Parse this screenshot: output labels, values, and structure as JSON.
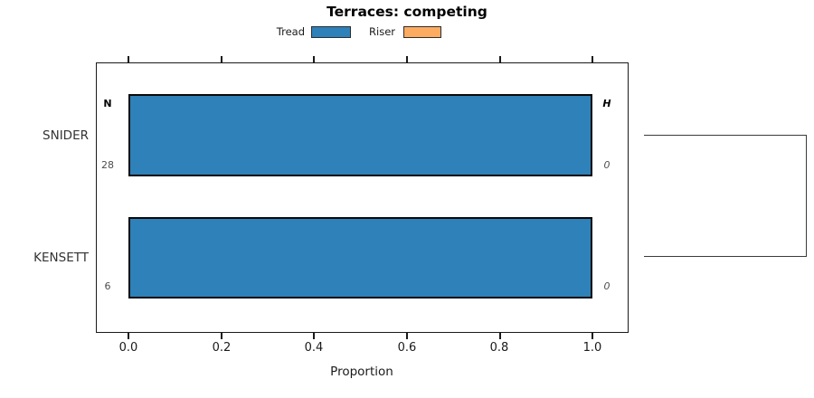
{
  "chart_data": {
    "type": "bar",
    "orientation": "horizontal",
    "title": "Terraces: competing",
    "xlabel": "Proportion",
    "xlim": [
      0,
      1
    ],
    "x_ticks": [
      0.0,
      0.2,
      0.4,
      0.6,
      0.8,
      1.0
    ],
    "x_tick_labels": [
      "0.0",
      "0.2",
      "0.4",
      "0.6",
      "0.8",
      "1.0"
    ],
    "categories": [
      "SNIDER",
      "KENSETT"
    ],
    "series": [
      {
        "name": "Tread",
        "color": "#2e81b9",
        "values": [
          1.0,
          1.0
        ]
      },
      {
        "name": "Riser",
        "color": "#fcab61",
        "values": [
          0.0,
          0.0
        ]
      }
    ],
    "row_annotations": {
      "left_header": "N",
      "left_values": [
        "28",
        "6"
      ],
      "right_header": "H",
      "right_values": [
        "0",
        "0"
      ]
    },
    "legend_position": "top-center",
    "grid": false,
    "right_connector": "dendrogram-bracket joining SNIDER and KENSETT rows"
  },
  "colors": {
    "tread": "#2e81b9",
    "riser": "#fcab61",
    "bar_border": "#0a0a0a",
    "axis": "#1a1a1a",
    "muted_text": "#4d4d4d"
  }
}
